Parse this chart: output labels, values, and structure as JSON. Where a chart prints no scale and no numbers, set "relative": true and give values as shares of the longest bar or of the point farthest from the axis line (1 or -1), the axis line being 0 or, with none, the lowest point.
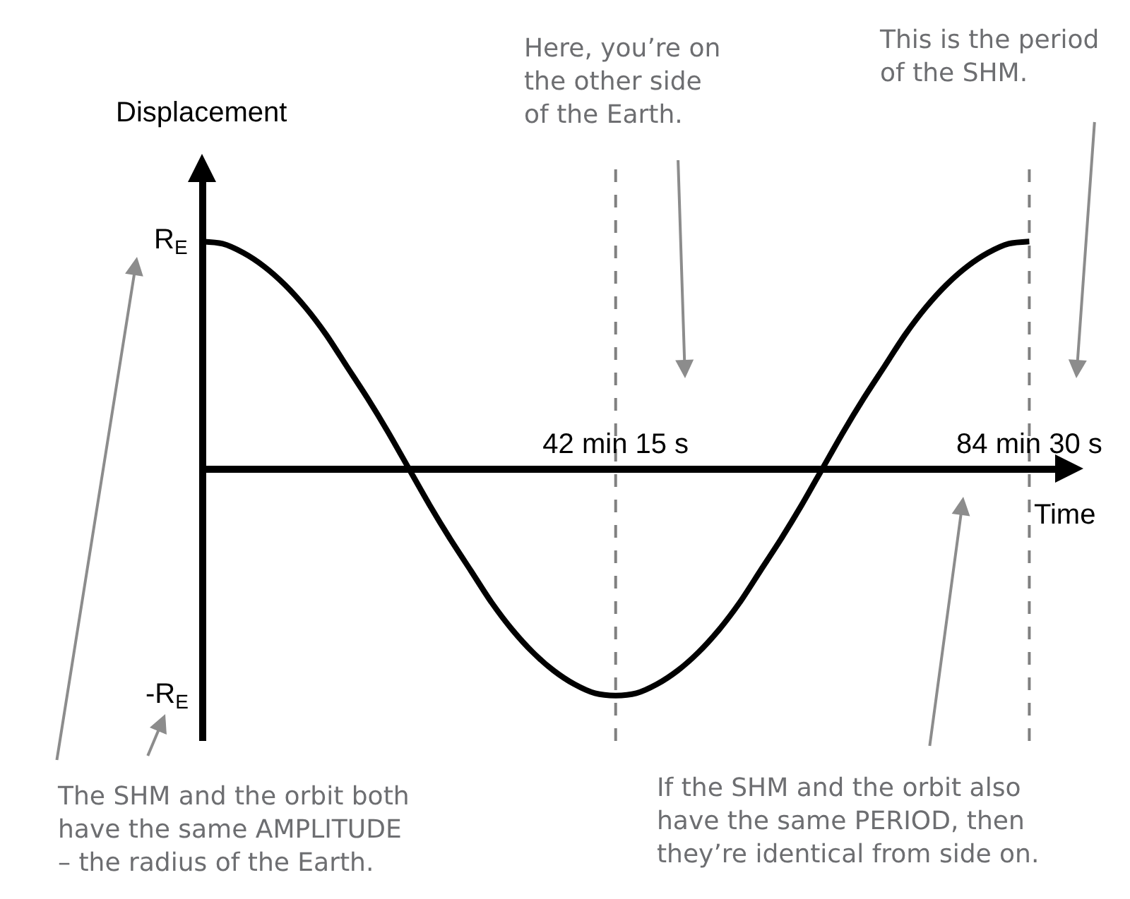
{
  "chart_data": {
    "type": "line",
    "relative": true,
    "xlabel": "Time",
    "ylabel": "Displacement",
    "categories": [
      null,
      null,
      null,
      null,
      null,
      null,
      null,
      null,
      null,
      null,
      null,
      null,
      null,
      null,
      null,
      null,
      null,
      null,
      null,
      null,
      "42 min 15 s",
      null,
      null,
      null,
      null,
      null,
      null,
      null,
      null,
      null,
      null,
      null,
      null,
      null,
      null,
      null,
      null,
      null,
      null,
      null,
      "84 min 30 s"
    ],
    "series": [
      {
        "color": "#000000",
        "values": [
          1,
          0.99,
          0.95,
          0.89,
          0.81,
          0.71,
          0.59,
          0.45,
          0.31,
          0.16,
          0,
          -0.16,
          -0.31,
          -0.45,
          -0.59,
          -0.71,
          -0.81,
          -0.89,
          -0.95,
          -0.99,
          -1,
          -0.99,
          -0.95,
          -0.89,
          -0.81,
          -0.71,
          -0.59,
          -0.45,
          -0.31,
          -0.16,
          0,
          0.16,
          0.31,
          0.45,
          0.59,
          0.71,
          0.81,
          0.89,
          0.95,
          0.99,
          1
        ]
      }
    ],
    "ref_lines": [
      {
        "axis": "x",
        "value": "42 min 15 s",
        "color": "#808080",
        "line_style": "dashed"
      },
      {
        "axis": "x",
        "value": "84 min 30 s",
        "color": "#808080",
        "line_style": "dashed"
      }
    ],
    "annotations": [
      "R$_{E}$",
      "-R$_{E}$",
      "Here, you’re on\nthe other side\nof the Earth.",
      "This is the period\nof the SHM.",
      "The SHM and the orbit both\nhave the same AMPLITUDE\n– the radius of the Earth.",
      "If the SHM and the orbit also\nhave the same PERIOD, then\nthey’re identical from side on."
    ]
  }
}
